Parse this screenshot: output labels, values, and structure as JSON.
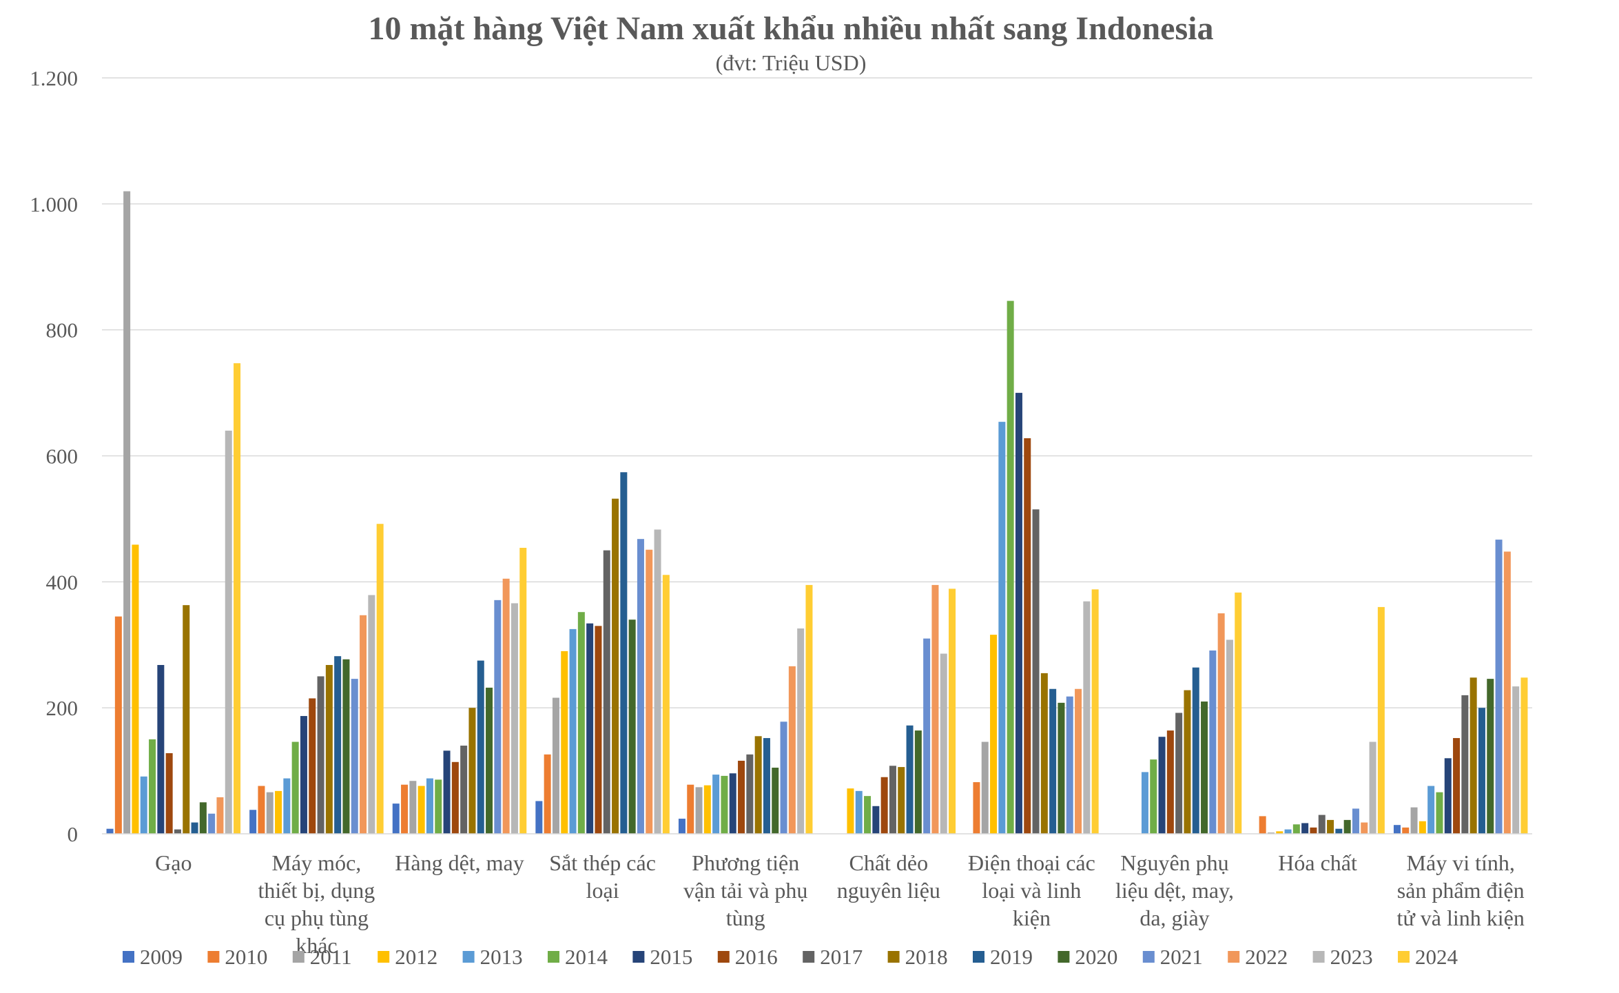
{
  "chart_data": {
    "type": "bar",
    "title": "10 mặt hàng Việt Nam xuất khẩu nhiều nhất sang Indonesia",
    "subtitle": "(đvt: Triệu USD)",
    "xlabel": "",
    "ylabel": "",
    "ylim": [
      0,
      1200
    ],
    "yticks": [
      {
        "value": 0,
        "label": "0"
      },
      {
        "value": 200,
        "label": "200"
      },
      {
        "value": 400,
        "label": "400"
      },
      {
        "value": 600,
        "label": "600"
      },
      {
        "value": 800,
        "label": "800"
      },
      {
        "value": 1000,
        "label": "1.000"
      },
      {
        "value": 1200,
        "label": "1.200"
      }
    ],
    "grid": true,
    "legend_position": "bottom",
    "categories": [
      [
        "Gạo"
      ],
      [
        "Máy móc,",
        "thiết bị, dụng",
        "cụ phụ tùng",
        "khác"
      ],
      [
        "Hàng dệt, may"
      ],
      [
        "Sắt thép các",
        "loại"
      ],
      [
        "Phương tiện",
        "vận tải và phụ",
        "tùng"
      ],
      [
        "Chất dẻo",
        "nguyên liệu"
      ],
      [
        "Điện thoại các",
        "loại và linh",
        "kiện"
      ],
      [
        "Nguyên phụ",
        "liệu dệt, may,",
        "da, giày"
      ],
      [
        "Hóa chất"
      ],
      [
        "Máy vi tính,",
        "sản phẩm điện",
        "tử và linh kiện"
      ]
    ],
    "series": [
      {
        "name": "2009",
        "color": "#4472C4",
        "values": [
          8,
          38,
          48,
          52,
          24,
          0,
          0,
          0,
          0,
          14
        ]
      },
      {
        "name": "2010",
        "color": "#ED7D31",
        "values": [
          345,
          76,
          78,
          126,
          78,
          0,
          82,
          0,
          28,
          10
        ]
      },
      {
        "name": "2011",
        "color": "#A5A5A5",
        "values": [
          1020,
          66,
          84,
          216,
          74,
          0,
          146,
          0,
          2,
          42
        ]
      },
      {
        "name": "2012",
        "color": "#FFC000",
        "values": [
          459,
          68,
          76,
          290,
          77,
          72,
          316,
          0,
          4,
          20
        ]
      },
      {
        "name": "2013",
        "color": "#5B9BD5",
        "values": [
          91,
          88,
          88,
          325,
          94,
          68,
          654,
          98,
          7,
          76
        ]
      },
      {
        "name": "2014",
        "color": "#70AD47",
        "values": [
          150,
          146,
          86,
          352,
          92,
          60,
          846,
          118,
          15,
          66
        ]
      },
      {
        "name": "2015",
        "color": "#264478",
        "values": [
          268,
          187,
          132,
          334,
          96,
          44,
          700,
          154,
          17,
          120
        ]
      },
      {
        "name": "2016",
        "color": "#9E480E",
        "values": [
          128,
          215,
          114,
          330,
          116,
          90,
          628,
          164,
          10,
          152
        ]
      },
      {
        "name": "2017",
        "color": "#636363",
        "values": [
          7,
          250,
          140,
          450,
          126,
          108,
          515,
          192,
          30,
          220
        ]
      },
      {
        "name": "2018",
        "color": "#997300",
        "values": [
          363,
          268,
          200,
          532,
          155,
          106,
          255,
          228,
          22,
          248
        ]
      },
      {
        "name": "2019",
        "color": "#255E91",
        "values": [
          18,
          282,
          275,
          574,
          152,
          172,
          230,
          264,
          8,
          200
        ]
      },
      {
        "name": "2020",
        "color": "#43682B",
        "values": [
          50,
          277,
          232,
          340,
          105,
          164,
          208,
          210,
          22,
          246
        ]
      },
      {
        "name": "2021",
        "color": "#698ED0",
        "values": [
          32,
          246,
          371,
          468,
          178,
          310,
          218,
          291,
          40,
          467
        ]
      },
      {
        "name": "2022",
        "color": "#F1975A",
        "values": [
          58,
          347,
          405,
          451,
          266,
          395,
          230,
          350,
          18,
          448
        ]
      },
      {
        "name": "2023",
        "color": "#B7B7B7",
        "values": [
          640,
          379,
          366,
          483,
          326,
          286,
          369,
          308,
          146,
          234
        ]
      },
      {
        "name": "2024",
        "color": "#FFCD33",
        "values": [
          747,
          492,
          454,
          411,
          395,
          389,
          388,
          383,
          360,
          248
        ]
      }
    ]
  }
}
